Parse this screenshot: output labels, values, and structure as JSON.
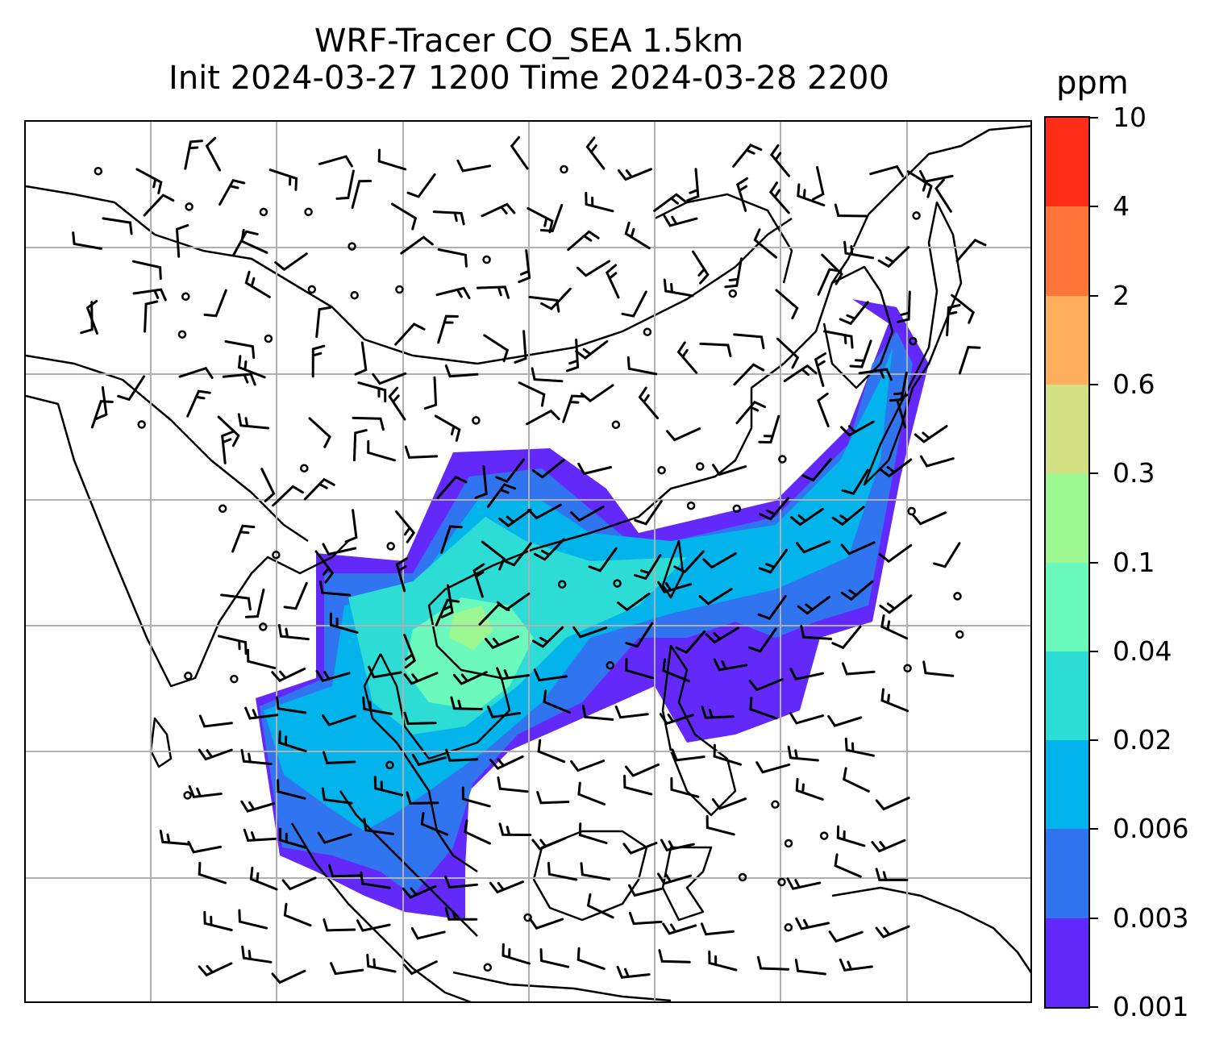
{
  "title": {
    "line1": "WRF-Tracer CO_SEA 1.5km",
    "line2": "Init 2024-03-27 1200 Time 2024-03-28 2200"
  },
  "colorbar": {
    "unit": "ppm",
    "levels": [
      "0.001",
      "0.003",
      "0.006",
      "0.02",
      "0.04",
      "0.1",
      "0.3",
      "0.6",
      "2",
      "4",
      "10"
    ],
    "colors": [
      "#6329fa",
      "#3174f0",
      "#03b3eb",
      "#2ddcd5",
      "#6bfabb",
      "#9df892",
      "#d2df82",
      "#ffae5c",
      "#ff7539",
      "#ff2c18"
    ]
  },
  "map": {
    "variable": "CO tracer concentration with wind barbs",
    "gridlines": true
  }
}
